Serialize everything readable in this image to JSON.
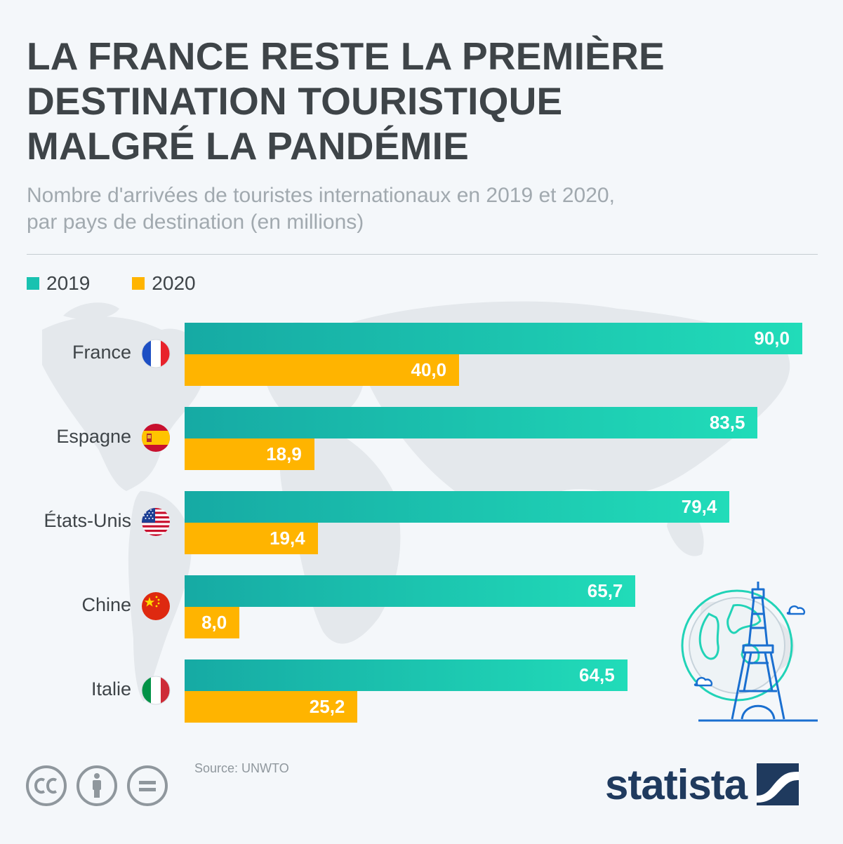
{
  "title_lines": [
    "LA FRANCE RESTE LA PREMIÈRE",
    "DESTINATION TOURISTIQUE",
    "MALGRÉ LA PANDÉMIE"
  ],
  "subtitle_lines": [
    "Nombre d'arrivées de touristes internationaux en 2019 et 2020,",
    "par pays de destination (en millions)"
  ],
  "source": "Source: UNWTO",
  "brand": "statista",
  "colors": {
    "series_2019_light": "#21dcb9",
    "series_2019_dark": "#16aaa4",
    "series_2020": "#ffb400",
    "title": "#3e4448",
    "subtitle": "#a1a9af",
    "brand": "#1f3a5e"
  },
  "chart_data": {
    "type": "bar",
    "orientation": "horizontal",
    "categories": [
      "France",
      "Espagne",
      "États-Unis",
      "Chine",
      "Italie"
    ],
    "category_icons": [
      "france-flag-icon",
      "spain-flag-icon",
      "usa-flag-icon",
      "china-flag-icon",
      "italy-flag-icon"
    ],
    "series": [
      {
        "name": "2019",
        "values": [
          90.0,
          83.5,
          79.4,
          65.7,
          64.5
        ],
        "labels": [
          "90,0",
          "83,5",
          "79,4",
          "65,7",
          "64,5"
        ]
      },
      {
        "name": "2020",
        "values": [
          40.0,
          18.9,
          19.4,
          8.0,
          25.2
        ],
        "labels": [
          "40,0",
          "18,9",
          "19,4",
          "8,0",
          "25,2"
        ]
      }
    ],
    "xlim": [
      0,
      90
    ],
    "legend_position": "top-left",
    "grid": false
  }
}
